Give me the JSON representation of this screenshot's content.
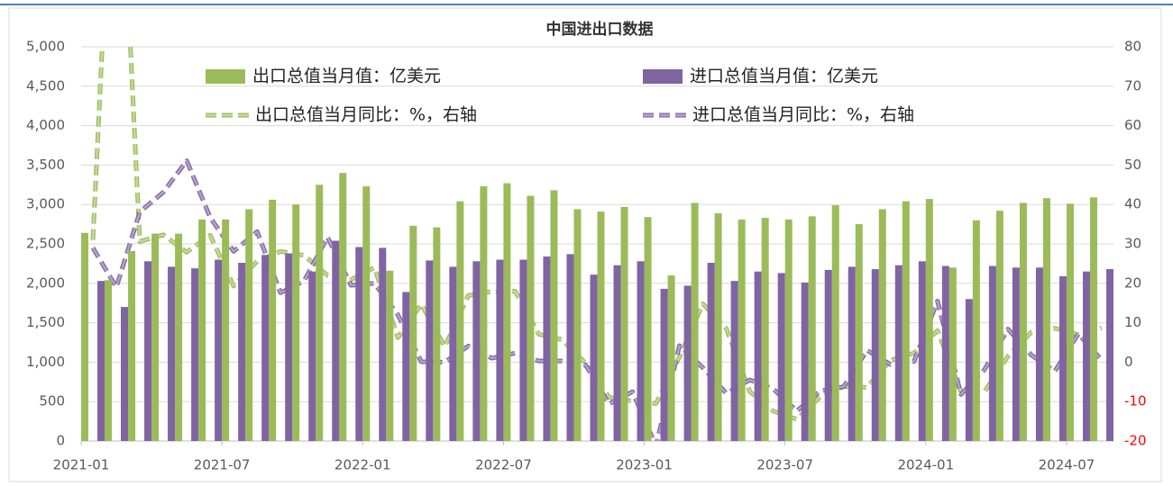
{
  "chart_data": {
    "type": "bar_line",
    "title": "中国进出口数据",
    "categories": [
      "2021-01",
      null,
      null,
      null,
      null,
      null,
      "2021-07",
      null,
      null,
      null,
      null,
      null,
      "2022-01",
      null,
      null,
      null,
      null,
      null,
      "2022-07",
      null,
      null,
      null,
      null,
      null,
      "2023-01",
      null,
      null,
      null,
      null,
      null,
      "2023-07",
      null,
      null,
      null,
      null,
      null,
      "2024-01",
      null,
      null,
      null,
      null,
      null,
      "2024-07",
      null
    ],
    "series": [
      {
        "name": "出口总值当月值：亿美元",
        "type": "bar",
        "color": "#9bbb59",
        "values": [
          2640,
          2040,
          2410,
          2630,
          2630,
          2810,
          2810,
          2940,
          3060,
          3000,
          3250,
          3400,
          3230,
          2160,
          2730,
          2710,
          3040,
          3230,
          3270,
          3110,
          3180,
          2940,
          2910,
          2970,
          2840,
          2100,
          3020,
          2890,
          2810,
          2830,
          2810,
          2850,
          2990,
          2750,
          2940,
          3040,
          3070,
          2200,
          2800,
          2920,
          3020,
          3080,
          3010,
          3090
        ]
      },
      {
        "name": "进口总值当月值：亿美元",
        "type": "bar",
        "color": "#8064a2",
        "values": [
          2030,
          1700,
          2280,
          2210,
          2190,
          2300,
          2260,
          2360,
          2380,
          2150,
          2540,
          2460,
          2450,
          1890,
          2290,
          2210,
          2280,
          2300,
          2300,
          2340,
          2370,
          2110,
          2230,
          2280,
          1930,
          1970,
          2260,
          2030,
          2150,
          2130,
          2010,
          2170,
          2210,
          2180,
          2230,
          2280,
          2220,
          1800,
          2220,
          2200,
          2200,
          2090,
          2150,
          2180
        ]
      },
      {
        "name": "出口总值当月同比：%，右轴",
        "type": "line",
        "axis": "y2",
        "color": "#c4d79b",
        "outline": "#9bbb59",
        "values": [
          31,
          154,
          30.6,
          32.3,
          27.9,
          32.2,
          19.3,
          25.6,
          28.1,
          27.1,
          22,
          20.9,
          24,
          6.2,
          14.7,
          3.9,
          16.9,
          17.9,
          18,
          7.1,
          5.7,
          -0.3,
          -8.9,
          -9.9,
          -10.5,
          1.3,
          14.8,
          8.5,
          -7.5,
          -12.4,
          -14.5,
          -8.8,
          -6.2,
          -6.4,
          0.5,
          2.3,
          8,
          -7.5,
          -7.5,
          1.5,
          7.6,
          8.6,
          7,
          8.7
        ]
      },
      {
        "name": "进口总值当月同比：%，右轴",
        "type": "line",
        "axis": "y2",
        "color": "#b3a2c7",
        "outline": "#8064a2",
        "values": [
          29,
          19,
          38.1,
          43.1,
          51.1,
          36.7,
          28.1,
          33.1,
          17.6,
          20.6,
          31.7,
          19.5,
          20,
          12,
          0.1,
          0,
          4.1,
          1,
          2.3,
          0.3,
          0.3,
          -0.7,
          -10.6,
          -7.5,
          -21.3,
          4.2,
          -1.4,
          -7.9,
          -4.5,
          -6.8,
          -12.4,
          -7.3,
          -6.2,
          3,
          -0.6,
          0.2,
          15.5,
          -8.2,
          -1.9,
          8.4,
          1.8,
          -2.3,
          7.2,
          0.5
        ]
      }
    ],
    "ylim": [
      0,
      5000
    ],
    "yticks": [
      0,
      500,
      {
        "value": 1000,
        "label": "1,000"
      },
      {
        "value": 1500,
        "label": "1,500"
      },
      {
        "value": 2000,
        "label": "2,000"
      },
      {
        "value": 2500,
        "label": "2,500"
      },
      {
        "value": 3000,
        "label": "3,000"
      },
      {
        "value": 3500,
        "label": "3,500"
      },
      {
        "value": 4000,
        "label": "4,000"
      },
      {
        "value": 4500,
        "label": "4,500"
      },
      {
        "value": 5000,
        "label": "5,000"
      }
    ],
    "y2lim": [
      -20,
      80
    ],
    "y2ticks": [
      -20,
      -10,
      0,
      10,
      20,
      30,
      40,
      50,
      60,
      70,
      80
    ],
    "negative_tick_color": "#ff0000",
    "grid": true,
    "legend": "top"
  }
}
